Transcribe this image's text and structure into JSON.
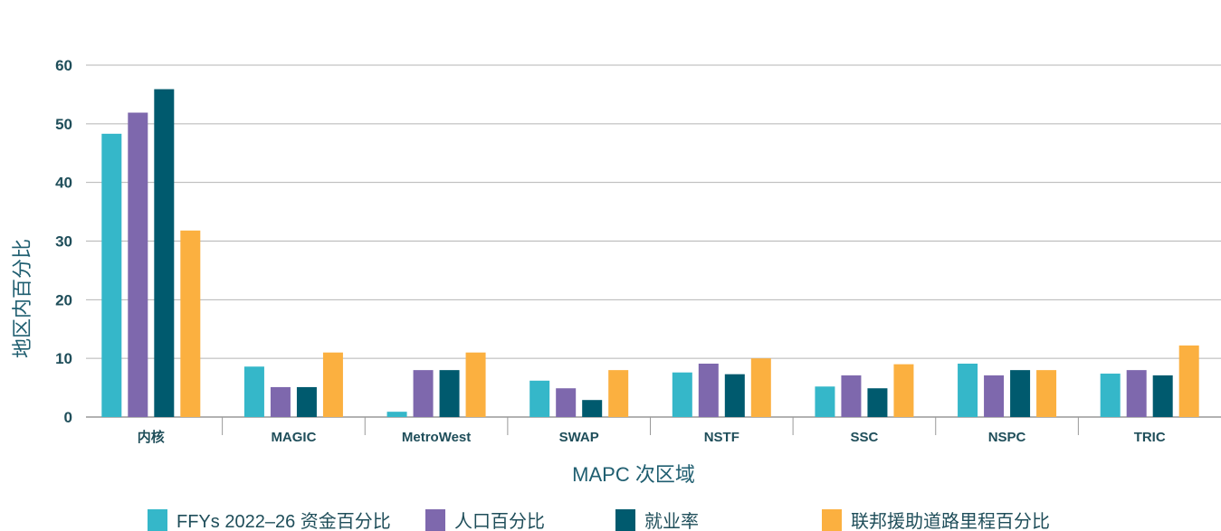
{
  "chart_data": {
    "type": "bar",
    "title": "",
    "xlabel": "MAPC 次区域",
    "ylabel": "地区内百分比",
    "ylim": [
      0,
      60
    ],
    "yticks": [
      0,
      10,
      20,
      30,
      40,
      50,
      60
    ],
    "grid": true,
    "legend_placement": "bottom",
    "categories": [
      "内核",
      "MAGIC",
      "MetroWest",
      "SWAP",
      "NSTF",
      "SSC",
      "NSPC",
      "TRIC"
    ],
    "series": [
      {
        "name": "FFYs 2022–26 资金百分比",
        "color": "#35b7c9",
        "values": [
          48.3,
          8.6,
          0.9,
          6.2,
          7.6,
          5.2,
          9.1,
          7.4
        ]
      },
      {
        "name": "人口百分比",
        "color": "#7e68ad",
        "values": [
          51.9,
          5.1,
          8.0,
          4.9,
          9.1,
          7.1,
          7.1,
          8.0
        ]
      },
      {
        "name": "就业率",
        "color": "#005a6e",
        "values": [
          55.9,
          5.1,
          8.0,
          2.9,
          7.3,
          4.9,
          8.0,
          7.1
        ]
      },
      {
        "name": "联邦援助道路里程百分比",
        "color": "#fbb040",
        "values": [
          31.8,
          11.0,
          11.0,
          8.0,
          10.0,
          9.0,
          8.0,
          12.2
        ]
      }
    ]
  }
}
